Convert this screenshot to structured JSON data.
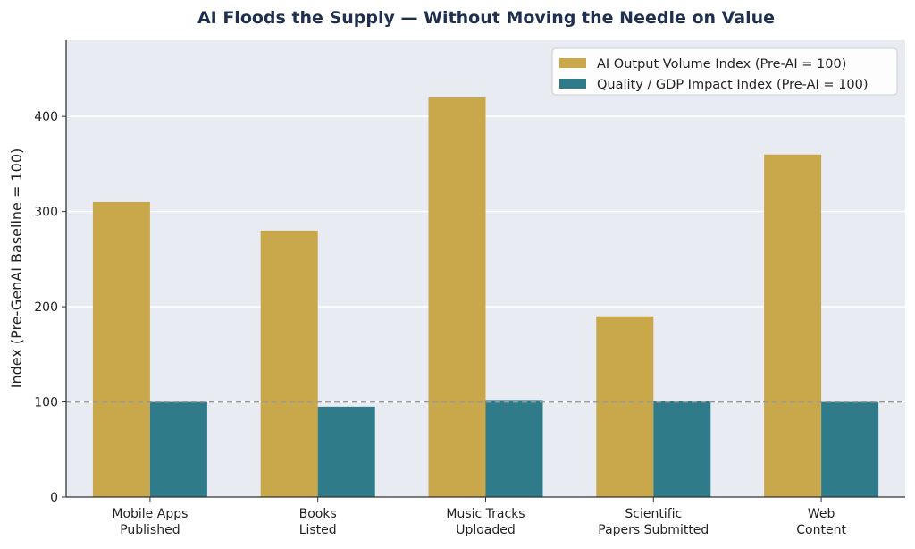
{
  "chart_data": {
    "type": "bar",
    "title": "AI Floods the Supply — Without Moving the Needle on Value",
    "ylabel": "Index (Pre-GenAI Baseline = 100)",
    "xlabel": "",
    "categories": [
      [
        "Mobile Apps",
        "Published"
      ],
      [
        "Books",
        "Listed"
      ],
      [
        "Music Tracks",
        "Uploaded"
      ],
      [
        "Scientific",
        "Papers Submitted"
      ],
      [
        "Web",
        "Content"
      ]
    ],
    "series": [
      {
        "name": "AI Output Volume Index (Pre-AI = 100)",
        "color": "#c9a74b",
        "values": [
          310,
          280,
          420,
          190,
          360
        ]
      },
      {
        "name": "Quality / GDP Impact Index (Pre-AI = 100)",
        "color": "#2f7b89",
        "values": [
          100,
          95,
          102,
          101,
          100
        ]
      }
    ],
    "ylim": [
      0,
      480
    ],
    "yticks": [
      0,
      100,
      200,
      300,
      400
    ],
    "reference_line": {
      "value": 100,
      "style": "dashed",
      "color": "#999999"
    },
    "grid": "horizontal",
    "background": "#e8ebf2",
    "legend_position": "top-right"
  }
}
